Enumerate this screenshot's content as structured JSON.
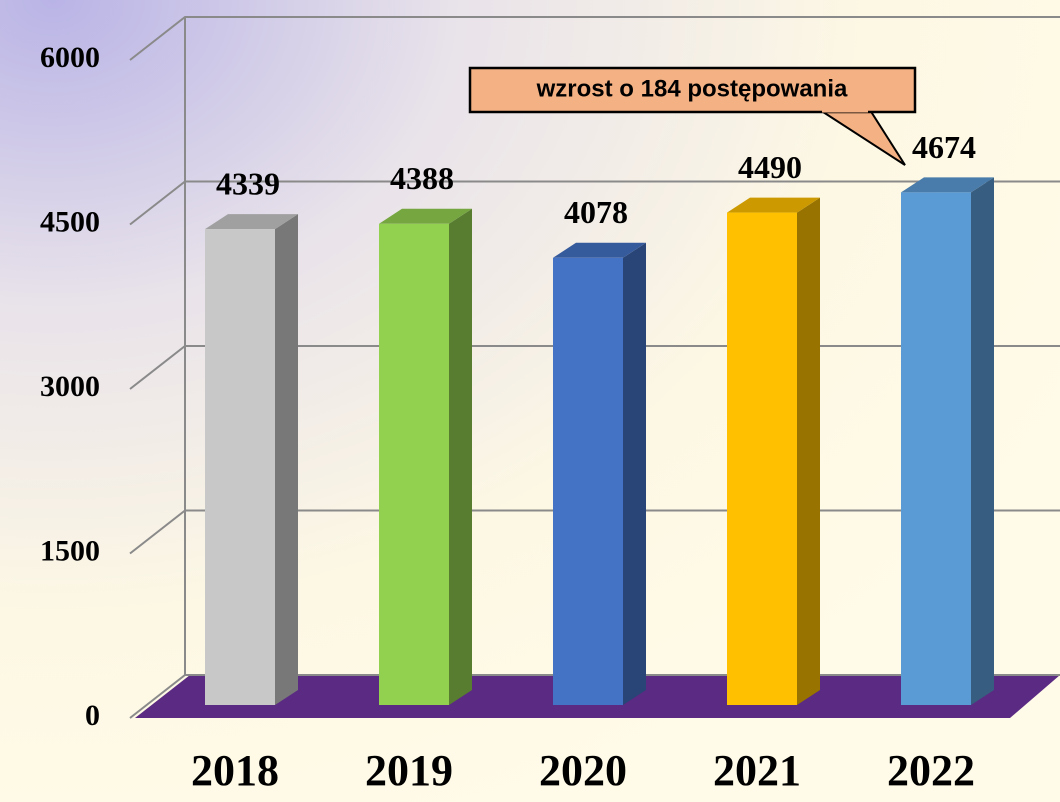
{
  "chart_data": {
    "type": "bar3d",
    "categories": [
      "2018",
      "2019",
      "2020",
      "2021",
      "2022"
    ],
    "values": [
      4339,
      4388,
      4078,
      4490,
      4674
    ],
    "colors": [
      "#c8c8c8",
      "#92d050",
      "#4472c4",
      "#ffc000",
      "#5b9bd5"
    ],
    "ylim": [
      0,
      6000
    ],
    "yticks": [
      0,
      1500,
      3000,
      4500,
      6000
    ],
    "grid": true,
    "annotation": "wzrost o 184 postępowania"
  }
}
